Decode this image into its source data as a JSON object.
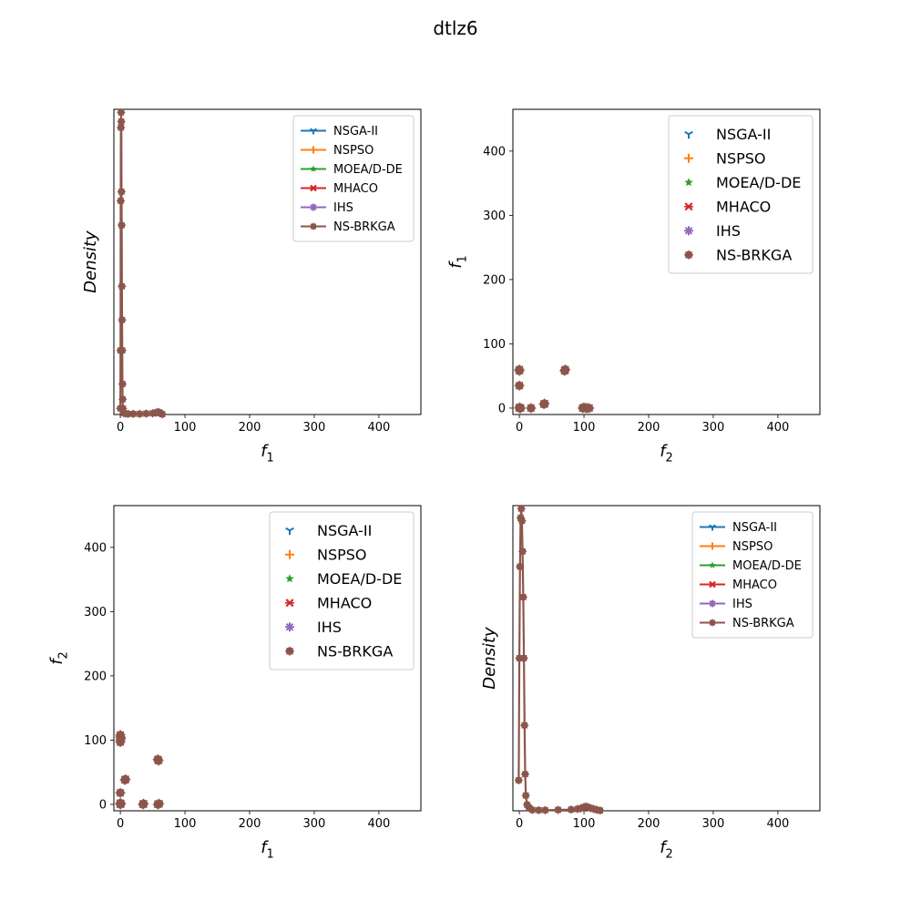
{
  "figure": {
    "title": "dtlz6"
  },
  "colors": {
    "NSGA-II": "#1f77b4",
    "NSPSO": "#ff7f0e",
    "MOEA/D-DE": "#2ca02c",
    "MHACO": "#d62728",
    "IHS": "#9467bd",
    "NS-BRKGA": "#8c564b"
  },
  "chart_data": [
    {
      "id": "density-f1",
      "type": "line",
      "xlabel": "f",
      "xlabel_sub": "1",
      "ylabel": "Density",
      "xlim": [
        -10,
        465
      ],
      "ylim": [
        0,
        1
      ],
      "xticks": [
        "0",
        "100",
        "200",
        "300",
        "400"
      ],
      "yticks": [],
      "legend_placement": "top-right",
      "series": [
        {
          "name": "NSGA-II",
          "marker": "tri"
        },
        {
          "name": "NSPSO",
          "marker": "plus"
        },
        {
          "name": "MOEA/D-DE",
          "marker": "star"
        },
        {
          "name": "MHACO",
          "marker": "x"
        },
        {
          "name": "IHS",
          "marker": "asterisk"
        },
        {
          "name": "NS-BRKGA",
          "marker": "octagon"
        }
      ],
      "curve": {
        "x": [
          0,
          0.3,
          0.6,
          0.9,
          1.2,
          1.5,
          1.8,
          2.1,
          2.4,
          2.7,
          3.0,
          3.3,
          3.6,
          4.0,
          5,
          8,
          12,
          20,
          30,
          40,
          50,
          55,
          58,
          60,
          62,
          65
        ],
        "y": [
          0.02,
          0.21,
          0.7,
          0.94,
          0.99,
          0.96,
          0.73,
          0.62,
          0.42,
          0.31,
          0.21,
          0.1,
          0.05,
          0.02,
          0.005,
          0.003,
          0.002,
          0.002,
          0.002,
          0.003,
          0.004,
          0.006,
          0.008,
          0.007,
          0.004,
          0.001
        ]
      }
    },
    {
      "id": "scatter-f2-f1",
      "type": "scatter",
      "xlabel": "f",
      "xlabel_sub": "2",
      "ylabel": "f",
      "ylabel_sub": "1",
      "xlim": [
        -10,
        465
      ],
      "ylim": [
        -10,
        465
      ],
      "xticks": [
        "0",
        "100",
        "200",
        "300",
        "400"
      ],
      "yticks": [
        "0",
        "100",
        "200",
        "300",
        "400"
      ],
      "legend_placement": "top-right",
      "series": [
        {
          "name": "NSGA-II",
          "marker": "tri"
        },
        {
          "name": "NSPSO",
          "marker": "plus"
        },
        {
          "name": "MOEA/D-DE",
          "marker": "star"
        },
        {
          "name": "MHACO",
          "marker": "x"
        },
        {
          "name": "IHS",
          "marker": "asterisk"
        },
        {
          "name": "NS-BRKGA",
          "marker": "octagon"
        }
      ],
      "points": [
        [
          0,
          58
        ],
        [
          0,
          60
        ],
        [
          0,
          35
        ],
        [
          0,
          1
        ],
        [
          0,
          0
        ],
        [
          2,
          0
        ],
        [
          18,
          0
        ],
        [
          38,
          6
        ],
        [
          39,
          7
        ],
        [
          70,
          58
        ],
        [
          71,
          60
        ],
        [
          98,
          0
        ],
        [
          100,
          1
        ],
        [
          103,
          0
        ],
        [
          105,
          0
        ],
        [
          108,
          0
        ]
      ]
    },
    {
      "id": "scatter-f1-f2",
      "type": "scatter",
      "xlabel": "f",
      "xlabel_sub": "1",
      "ylabel": "f",
      "ylabel_sub": "2",
      "xlim": [
        -10,
        465
      ],
      "ylim": [
        -10,
        465
      ],
      "xticks": [
        "0",
        "100",
        "200",
        "300",
        "400"
      ],
      "yticks": [
        "0",
        "100",
        "200",
        "300",
        "400"
      ],
      "legend_placement": "top-right",
      "series": [
        {
          "name": "NSGA-II",
          "marker": "tri"
        },
        {
          "name": "NSPSO",
          "marker": "plus"
        },
        {
          "name": "MOEA/D-DE",
          "marker": "star"
        },
        {
          "name": "MHACO",
          "marker": "x"
        },
        {
          "name": "IHS",
          "marker": "asterisk"
        },
        {
          "name": "NS-BRKGA",
          "marker": "octagon"
        }
      ],
      "points": [
        [
          0,
          108
        ],
        [
          0,
          105
        ],
        [
          0,
          100
        ],
        [
          0,
          97
        ],
        [
          1,
          103
        ],
        [
          0,
          18
        ],
        [
          0,
          2
        ],
        [
          0,
          0
        ],
        [
          1,
          1
        ],
        [
          7,
          38
        ],
        [
          8,
          39
        ],
        [
          35,
          0
        ],
        [
          36,
          1
        ],
        [
          58,
          70
        ],
        [
          59,
          68
        ],
        [
          58,
          0
        ],
        [
          60,
          1
        ]
      ]
    },
    {
      "id": "density-f2",
      "type": "line",
      "xlabel": "f",
      "xlabel_sub": "2",
      "ylabel": "Density",
      "xlim": [
        -10,
        465
      ],
      "ylim": [
        0,
        1
      ],
      "xticks": [
        "0",
        "100",
        "200",
        "300",
        "400"
      ],
      "yticks": [],
      "legend_placement": "top-right",
      "series": [
        {
          "name": "NSGA-II",
          "marker": "tri"
        },
        {
          "name": "NSPSO",
          "marker": "plus"
        },
        {
          "name": "MOEA/D-DE",
          "marker": "star"
        },
        {
          "name": "MHACO",
          "marker": "x"
        },
        {
          "name": "IHS",
          "marker": "asterisk"
        },
        {
          "name": "NS-BRKGA",
          "marker": "octagon"
        }
      ],
      "curve": {
        "x": [
          -1,
          0,
          1,
          2,
          3,
          4,
          5,
          6,
          7,
          8,
          9,
          10,
          12,
          15,
          20,
          30,
          40,
          60,
          80,
          90,
          95,
          100,
          103,
          106,
          110,
          115,
          120,
          125
        ],
        "y": [
          0.1,
          0.5,
          0.8,
          0.96,
          0.99,
          0.95,
          0.85,
          0.7,
          0.5,
          0.28,
          0.12,
          0.05,
          0.02,
          0.01,
          0.003,
          0.002,
          0.002,
          0.003,
          0.004,
          0.006,
          0.008,
          0.012,
          0.014,
          0.012,
          0.009,
          0.006,
          0.003,
          0.001
        ]
      }
    }
  ]
}
